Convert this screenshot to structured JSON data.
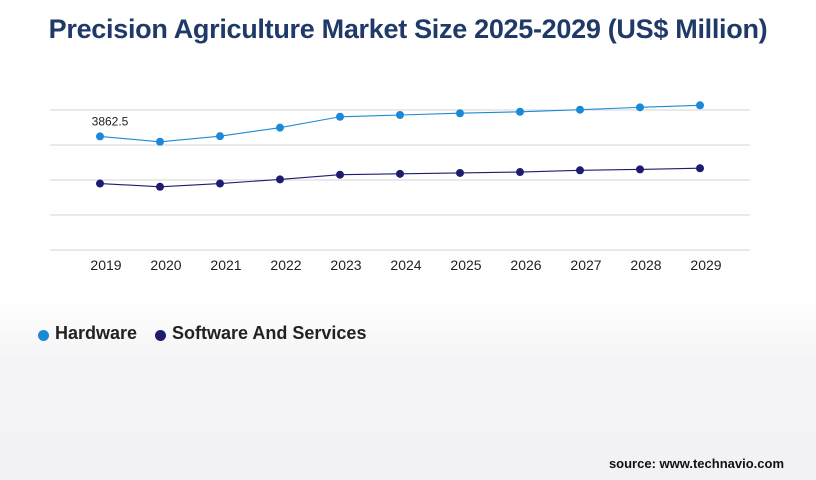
{
  "title": "Precision Agriculture Market Size 2025-2029 (US$ Million)",
  "source": "source: www.technavio.com",
  "legend": [
    {
      "label": "Hardware",
      "color": "#1b8ad6"
    },
    {
      "label": "Software And Services",
      "color": "#1e1c6e"
    }
  ],
  "chart_data": {
    "type": "line",
    "title": "Precision Agriculture Market Size 2025-2029 (US$ Million)",
    "categories": [
      "2019",
      "2020",
      "2021",
      "2022",
      "2023",
      "2024",
      "2025",
      "2026",
      "2027",
      "2028",
      "2029"
    ],
    "series": [
      {
        "name": "Hardware",
        "color": "#1b8ad6",
        "values": [
          3862.5,
          3680,
          3870,
          4160,
          4530,
          4590,
          4650,
          4700,
          4770,
          4850,
          4920
        ]
      },
      {
        "name": "Software And Services",
        "color": "#1e1c6e",
        "values": [
          2260,
          2150,
          2260,
          2400,
          2560,
          2590,
          2620,
          2650,
          2710,
          2740,
          2780
        ]
      }
    ],
    "data_labels": [
      {
        "series": 0,
        "index": 0,
        "text": "3862.5"
      }
    ],
    "ylim": [
      0,
      5950
    ],
    "grid": true,
    "legend_position": "bottom-left"
  }
}
